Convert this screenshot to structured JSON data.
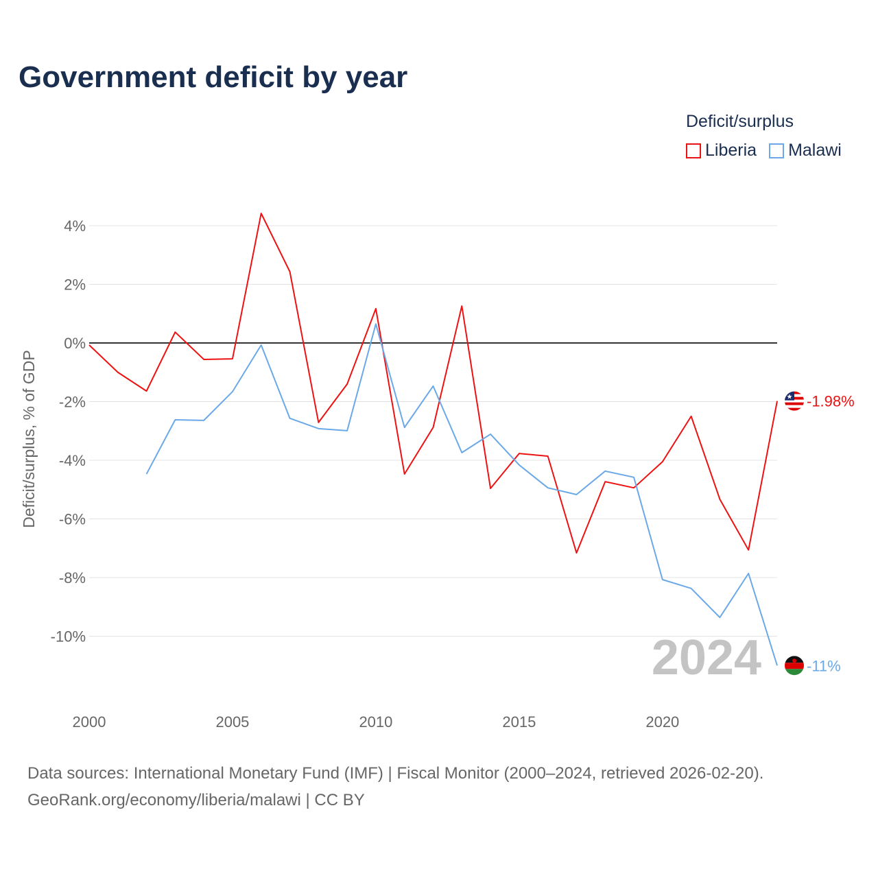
{
  "title": "Government deficit by year",
  "legend": {
    "title": "Deficit/surplus",
    "items": [
      {
        "name": "Liberia",
        "color": "#ee1111"
      },
      {
        "name": "Malawi",
        "color": "#6aa8e8"
      }
    ]
  },
  "chart_data": {
    "type": "line",
    "title": "Government deficit by year",
    "xlabel": "",
    "ylabel": "Deficit/surplus, % of GDP",
    "xlim": [
      2000,
      2024
    ],
    "ylim": [
      -11,
      4.5
    ],
    "x_ticks": [
      2000,
      2005,
      2010,
      2015,
      2020
    ],
    "y_ticks": [
      4,
      2,
      0,
      -2,
      -4,
      -6,
      -8,
      -10
    ],
    "y_tick_labels": [
      "4%",
      "2%",
      "0%",
      "-2%",
      "-4%",
      "-6%",
      "-8%",
      "-10%"
    ],
    "watermark": "2024",
    "series": [
      {
        "name": "Liberia",
        "color": "#ee1111",
        "end_label": "-1.98%",
        "x": [
          2000,
          2001,
          2002,
          2003,
          2004,
          2005,
          2006,
          2007,
          2008,
          2009,
          2010,
          2011,
          2012,
          2013,
          2014,
          2015,
          2016,
          2017,
          2018,
          2019,
          2020,
          2021,
          2022,
          2023,
          2024
        ],
        "values": [
          -0.07,
          -1.0,
          -1.64,
          0.37,
          -0.56,
          -0.54,
          4.42,
          2.43,
          -2.71,
          -1.4,
          1.17,
          -4.47,
          -2.88,
          1.26,
          -4.96,
          -3.77,
          -3.86,
          -7.16,
          -4.73,
          -4.94,
          -4.05,
          -2.5,
          -5.33,
          -7.06,
          -1.98
        ]
      },
      {
        "name": "Malawi",
        "color": "#6aa8e8",
        "end_label": "-11%",
        "x": [
          2002,
          2003,
          2004,
          2005,
          2006,
          2007,
          2008,
          2009,
          2010,
          2011,
          2012,
          2013,
          2014,
          2015,
          2016,
          2017,
          2018,
          2019,
          2020,
          2021,
          2022,
          2023,
          2024
        ],
        "values": [
          -4.47,
          -2.62,
          -2.64,
          -1.66,
          -0.07,
          -2.57,
          -2.92,
          -2.99,
          0.65,
          -2.88,
          -1.47,
          -3.74,
          -3.11,
          -4.16,
          -4.94,
          -5.17,
          -4.37,
          -4.58,
          -8.07,
          -8.37,
          -9.36,
          -7.86,
          -11.0
        ]
      }
    ]
  },
  "footer": {
    "line1": "Data sources: International Monetary Fund (IMF) | Fiscal Monitor (2000–2024, retrieved 2026-02-20).",
    "line2": "GeoRank.org/economy/liberia/malawi | CC BY"
  }
}
